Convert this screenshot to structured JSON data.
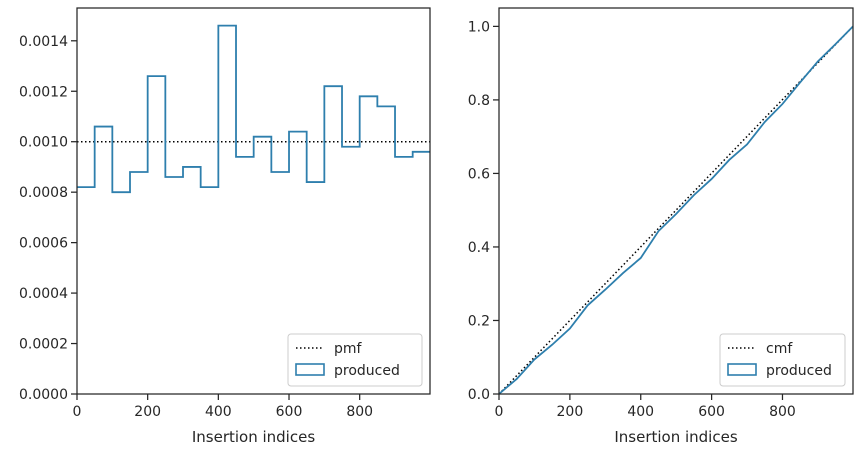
{
  "chart_data": [
    {
      "type": "line",
      "subtype": "step-histogram",
      "xlabel": "Insertion indices",
      "ylabel": "",
      "xlim": [
        0,
        999
      ],
      "ylim": [
        0,
        0.00153
      ],
      "xticks": [
        0,
        200,
        400,
        600,
        800
      ],
      "yticks": [
        0,
        0.0002,
        0.0004,
        0.0006,
        0.0008,
        0.001,
        0.0012,
        0.0014
      ],
      "ytick_labels": [
        "0.0000",
        "0.0002",
        "0.0004",
        "0.0006",
        "0.0008",
        "0.0010",
        "0.0012",
        "0.0014"
      ],
      "legend_position": "lower-right",
      "series": [
        {
          "name": "pmf",
          "style": "dotted",
          "color": "#000000",
          "x": [
            0,
            999
          ],
          "y": [
            0.001,
            0.001
          ]
        },
        {
          "name": "produced",
          "style": "step",
          "color": "#2e7fad",
          "bin_edges": [
            0,
            50,
            100,
            150,
            200,
            250,
            300,
            350,
            400,
            450,
            500,
            550,
            600,
            650,
            700,
            750,
            800,
            850,
            900,
            950,
            999
          ],
          "values": [
            0.00082,
            0.00106,
            0.0008,
            0.00088,
            0.00126,
            0.00086,
            0.0009,
            0.00082,
            0.00146,
            0.00094,
            0.00102,
            0.00088,
            0.00104,
            0.00084,
            0.00122,
            0.00098,
            0.00118,
            0.00114,
            0.00094,
            0.00096
          ]
        }
      ]
    },
    {
      "type": "line",
      "xlabel": "Insertion indices",
      "ylabel": "",
      "xlim": [
        0,
        999
      ],
      "ylim": [
        0,
        1.05
      ],
      "xticks": [
        0,
        200,
        400,
        600,
        800
      ],
      "yticks": [
        0,
        0.2,
        0.4,
        0.6,
        0.8,
        1.0
      ],
      "ytick_labels": [
        "0.0",
        "0.2",
        "0.4",
        "0.6",
        "0.8",
        "1.0"
      ],
      "legend_position": "lower-right",
      "series": [
        {
          "name": "cmf",
          "style": "dotted",
          "color": "#000000",
          "x": [
            0,
            999
          ],
          "y": [
            0,
            1.0
          ]
        },
        {
          "name": "produced",
          "style": "solid",
          "color": "#2e7fad",
          "x": [
            0,
            50,
            100,
            150,
            200,
            250,
            300,
            350,
            400,
            450,
            500,
            550,
            600,
            650,
            700,
            750,
            800,
            850,
            900,
            950,
            999
          ],
          "y": [
            0,
            0.041,
            0.094,
            0.134,
            0.178,
            0.241,
            0.284,
            0.329,
            0.37,
            0.443,
            0.49,
            0.541,
            0.585,
            0.637,
            0.679,
            0.74,
            0.789,
            0.848,
            0.905,
            0.952,
            1.0
          ]
        }
      ]
    }
  ]
}
